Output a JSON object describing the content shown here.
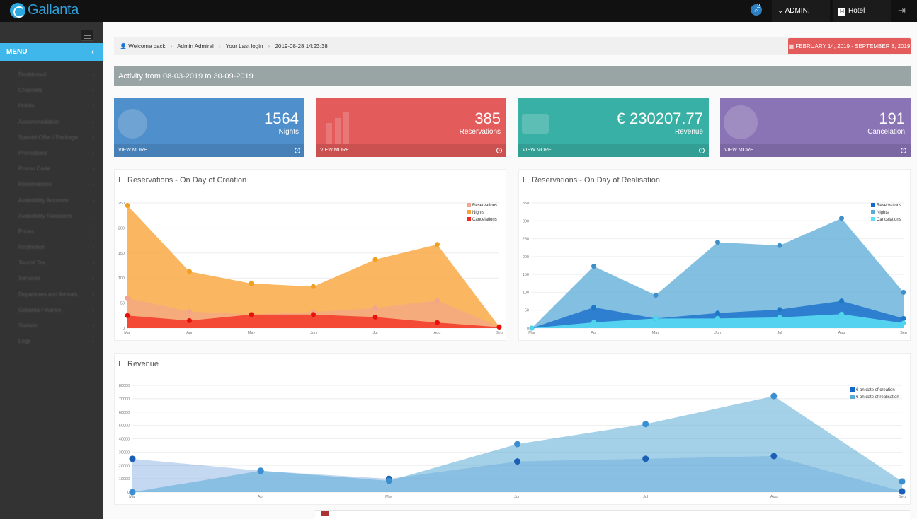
{
  "app": {
    "name": "Gallanta"
  },
  "topbar": {
    "notification_count": "2",
    "admin_label": "ADMIN.",
    "hotel_label": "Hotel"
  },
  "sidebar": {
    "menu_label": "MENU",
    "items": [
      {
        "label": "Dashboard"
      },
      {
        "label": "Channels"
      },
      {
        "label": "Hotels"
      },
      {
        "label": "Accommodation"
      },
      {
        "label": "Special Offer / Package"
      },
      {
        "label": "Promotions"
      },
      {
        "label": "Promo Code"
      },
      {
        "label": "Reservations"
      },
      {
        "label": "Availability Accomm"
      },
      {
        "label": "Availability Rateplans"
      },
      {
        "label": "Prices"
      },
      {
        "label": "Restriction"
      },
      {
        "label": "Tourist Tax"
      },
      {
        "label": "Services"
      },
      {
        "label": "Departures and Arrivals"
      },
      {
        "label": "Gallanta Finance"
      },
      {
        "label": "Statistic"
      },
      {
        "label": "Logs"
      }
    ]
  },
  "breadcrumb": {
    "welcome": "Welcome back",
    "user": "Admin Admiral",
    "last_login_label": "Your Last login",
    "last_login": "2019-08-28 14:23:38"
  },
  "date_range": "FEBRUARY 14, 2019 - SEPTEMBER 8, 2019",
  "activity": "Activity from 08-03-2019 to 30-09-2019",
  "stats": [
    {
      "value": "1564",
      "label": "Nights",
      "more": "VIEW MORE",
      "color": "#4f8fcb"
    },
    {
      "value": "385",
      "label": "Reservations",
      "more": "VIEW MORE",
      "color": "#e35b5a"
    },
    {
      "value": "€ 230207.77",
      "label": "Revenue",
      "more": "VIEW MORE",
      "color": "#39b0a5"
    },
    {
      "value": "191",
      "label": "Cancelation",
      "more": "VIEW MORE",
      "color": "#8a74b5"
    }
  ],
  "chart_data": [
    {
      "type": "area",
      "title": "Reservations - On Day of Creation",
      "categories": [
        "Mar",
        "Apr",
        "May",
        "Jun",
        "Jul",
        "Aug",
        "Sep"
      ],
      "ylim": [
        0,
        250
      ],
      "yticks": [
        0,
        50,
        100,
        150,
        200,
        250
      ],
      "legend": "top-right",
      "series": [
        {
          "name": "Reservations",
          "color": "#f4a38f",
          "values": [
            60,
            33,
            27,
            32,
            40,
            55,
            3
          ]
        },
        {
          "name": "Nights",
          "color": "#f9a43a",
          "values": [
            245,
            113,
            89,
            83,
            137,
            167,
            3
          ]
        },
        {
          "name": "Cancelations",
          "color": "#f2281e",
          "values": [
            25,
            15,
            27,
            27,
            22,
            11,
            2
          ]
        }
      ]
    },
    {
      "type": "area",
      "title": "Reservations - On Day of Realisation",
      "categories": [
        "Mar",
        "Apr",
        "May",
        "Jun",
        "Jul",
        "Aug",
        "Sep"
      ],
      "ylim": [
        0,
        350
      ],
      "yticks": [
        0,
        50,
        100,
        150,
        200,
        250,
        300,
        350
      ],
      "legend": "top-right",
      "series": [
        {
          "name": "Reservations",
          "color": "#1269c9",
          "values": [
            0,
            58,
            27,
            42,
            52,
            76,
            27
          ]
        },
        {
          "name": "Nights",
          "color": "#5aaad6",
          "values": [
            0,
            173,
            92,
            240,
            231,
            307,
            100
          ]
        },
        {
          "name": "Cancelations",
          "color": "#5be0f5",
          "values": [
            0,
            16,
            27,
            27,
            30,
            39,
            14
          ]
        }
      ]
    },
    {
      "type": "area",
      "title": "Revenue",
      "categories": [
        "Mar",
        "Apr",
        "May",
        "Jun",
        "Jul",
        "Aug",
        "Sep"
      ],
      "ylim": [
        0,
        80000
      ],
      "yticks": [
        0,
        10000,
        20000,
        30000,
        40000,
        50000,
        60000,
        70000,
        80000
      ],
      "legend": "top-right",
      "series": [
        {
          "name": "€ on date of creation",
          "color": "#1269c9",
          "values": [
            25000,
            16000,
            10000,
            23000,
            25000,
            27000,
            500
          ]
        },
        {
          "name": "€ on date of realisation",
          "color": "#5aaad6",
          "values": [
            0,
            16000,
            8500,
            36000,
            51000,
            72000,
            8000
          ]
        }
      ]
    }
  ]
}
